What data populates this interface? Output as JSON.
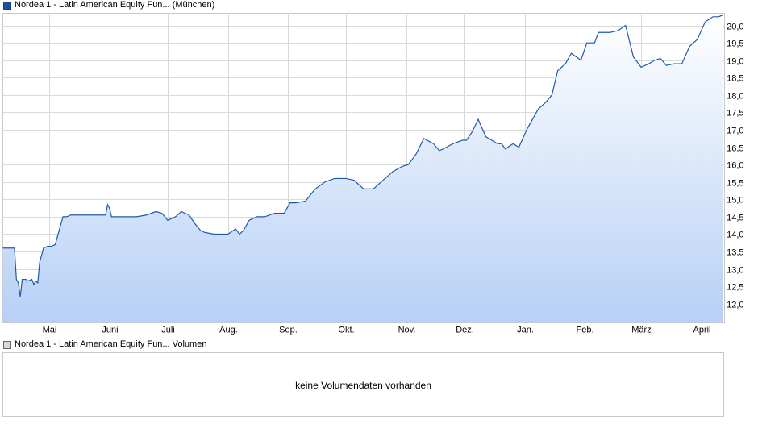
{
  "legend": {
    "price_label": "Nordea 1 - Latin American Equity Fun... (München)",
    "volume_label": "Nordea 1 - Latin American Equity Fun... Volumen"
  },
  "volume_panel": {
    "message": "keine Volumendaten vorhanden"
  },
  "colors": {
    "line": "#1f5aa6",
    "fill_top": "#ffffff",
    "fill_bottom": "#b7d0f5",
    "grid": "#d9d9d9",
    "border": "#c8c8c8"
  },
  "chart_data": {
    "type": "area",
    "title": "",
    "xlabel": "",
    "ylabel": "",
    "ylim": [
      11.45,
      20.35
    ],
    "y_ticks": [
      "12,0",
      "12,5",
      "13,0",
      "13,5",
      "14,0",
      "14,5",
      "15,0",
      "15,5",
      "16,0",
      "16,5",
      "17,0",
      "17,5",
      "18,0",
      "18,5",
      "19,0",
      "19,5",
      "20,0"
    ],
    "x_ticks": [
      "Mai",
      "Juni",
      "Juli",
      "Aug.",
      "Sep.",
      "Okt.",
      "Nov.",
      "Dez.",
      "Jan.",
      "Feb.",
      "März",
      "April"
    ],
    "grid": true,
    "series": [
      {
        "x": [
          "2023-04-10",
          "2023-04-13",
          "2023-04-14",
          "2023-04-15",
          "2023-04-16",
          "2023-04-17",
          "2023-04-19",
          "2023-04-20",
          "2023-04-22",
          "2023-04-23",
          "2023-04-24",
          "2023-04-25",
          "2023-04-26",
          "2023-04-27",
          "2023-04-28",
          "2023-04-30",
          "2023-05-02",
          "2023-05-04",
          "2023-05-06",
          "2023-05-08",
          "2023-05-10",
          "2023-05-12",
          "2023-05-15",
          "2023-05-20",
          "2023-05-25",
          "2023-05-30",
          "2023-05-31",
          "2023-06-01",
          "2023-06-02",
          "2023-06-05",
          "2023-06-10",
          "2023-06-15",
          "2023-06-20",
          "2023-06-25",
          "2023-06-28",
          "2023-07-01",
          "2023-07-05",
          "2023-07-08",
          "2023-07-12",
          "2023-07-15",
          "2023-07-18",
          "2023-07-20",
          "2023-07-25",
          "2023-07-28",
          "2023-08-01",
          "2023-08-05",
          "2023-08-07",
          "2023-08-09",
          "2023-08-12",
          "2023-08-14",
          "2023-08-16",
          "2023-08-20",
          "2023-08-25",
          "2023-08-30",
          "2023-09-02",
          "2023-09-05",
          "2023-09-10",
          "2023-09-15",
          "2023-09-20",
          "2023-09-25",
          "2023-09-28",
          "2023-10-01",
          "2023-10-05",
          "2023-10-10",
          "2023-10-15",
          "2023-10-20",
          "2023-10-25",
          "2023-10-30",
          "2023-11-02",
          "2023-11-06",
          "2023-11-10",
          "2023-11-15",
          "2023-11-18",
          "2023-11-20",
          "2023-11-25",
          "2023-11-30",
          "2023-12-02",
          "2023-12-05",
          "2023-12-08",
          "2023-12-12",
          "2023-12-15",
          "2023-12-18",
          "2023-12-20",
          "2023-12-22",
          "2023-12-26",
          "2023-12-29",
          "2024-01-02",
          "2024-01-05",
          "2024-01-08",
          "2024-01-12",
          "2024-01-15",
          "2024-01-18",
          "2024-01-22",
          "2024-01-25",
          "2024-01-30",
          "2024-02-02",
          "2024-02-06",
          "2024-02-08",
          "2024-02-10",
          "2024-02-14",
          "2024-02-18",
          "2024-02-22",
          "2024-02-26",
          "2024-03-01",
          "2024-03-05",
          "2024-03-08",
          "2024-03-11",
          "2024-03-14",
          "2024-03-18",
          "2024-03-22",
          "2024-03-26",
          "2024-03-30",
          "2024-04-03",
          "2024-04-07",
          "2024-04-10",
          "2024-04-12"
        ],
        "values": [
          13.6,
          13.6,
          12.7,
          12.6,
          12.2,
          12.7,
          12.7,
          12.65,
          12.7,
          12.55,
          12.65,
          12.6,
          13.2,
          13.4,
          13.6,
          13.65,
          13.65,
          13.7,
          14.1,
          14.5,
          14.5,
          14.55,
          14.55,
          14.55,
          14.55,
          14.55,
          14.85,
          14.75,
          14.5,
          14.5,
          14.5,
          14.5,
          14.55,
          14.65,
          14.6,
          14.4,
          14.5,
          14.65,
          14.55,
          14.3,
          14.1,
          14.05,
          14.0,
          14.0,
          14.0,
          14.15,
          14.0,
          14.1,
          14.4,
          14.45,
          14.5,
          14.5,
          14.6,
          14.6,
          14.9,
          14.9,
          14.95,
          15.3,
          15.5,
          15.6,
          15.6,
          15.6,
          15.55,
          15.3,
          15.3,
          15.55,
          15.8,
          15.95,
          16.0,
          16.3,
          16.75,
          16.6,
          16.4,
          16.45,
          16.6,
          16.7,
          16.7,
          16.95,
          17.3,
          16.8,
          16.7,
          16.6,
          16.6,
          16.45,
          16.6,
          16.5,
          17.0,
          17.3,
          17.6,
          17.8,
          18.0,
          18.7,
          18.9,
          19.2,
          19.0,
          19.5,
          19.5,
          19.8,
          19.8,
          19.8,
          19.85,
          20.0,
          19.1,
          18.8,
          18.9,
          19.0,
          19.05,
          18.85,
          18.9,
          18.9,
          19.4,
          19.6,
          20.1,
          20.25,
          20.25,
          20.3
        ]
      }
    ]
  }
}
